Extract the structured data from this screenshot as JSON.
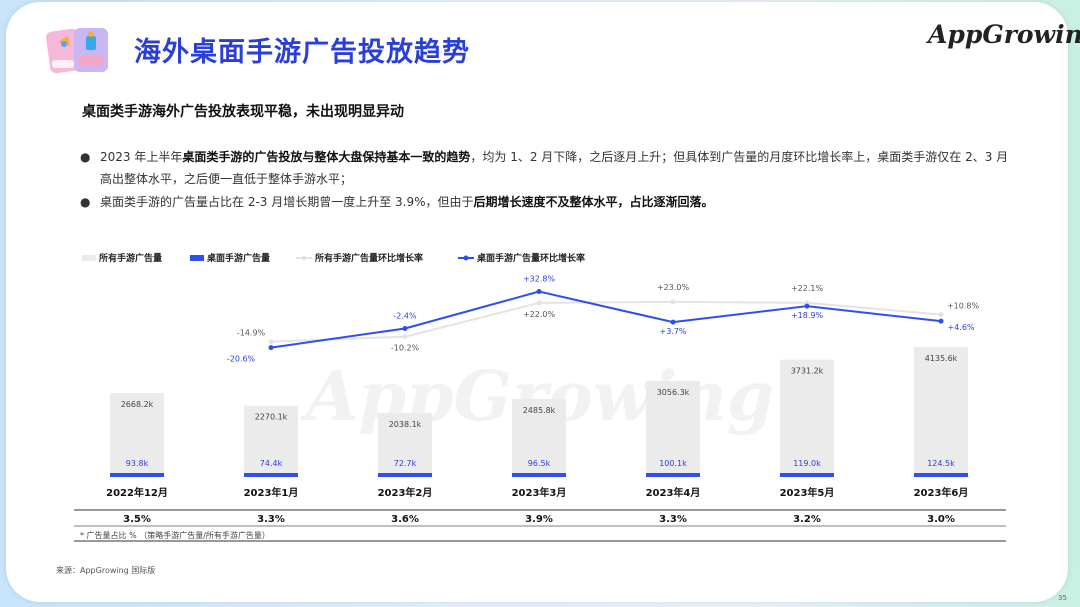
{
  "header": {
    "title": "海外桌面手游广告投放趋势",
    "brand": "AppGrowing"
  },
  "subtitle": "桌面类手游海外广告投放表现平稳，未出现明显异动",
  "bullets": [
    {
      "dot": "●",
      "parts": [
        {
          "t": "2023 年上半年",
          "b": false
        },
        {
          "t": "桌面类手游的广告投放与整体大盘保持基本一致的趋势",
          "b": true
        },
        {
          "t": "，均为 1、2 月下降，之后逐月上升；但具体到广告量的月度环比增长率上，桌面类手游仅在 2、3 月高出整体水平，之后便一直低于整体手游水平；",
          "b": false
        }
      ]
    },
    {
      "dot": "●",
      "parts": [
        {
          "t": "桌面类手游的广告量占比在 2-3 月增长期曾一度上升至 3.9%，但由于",
          "b": false
        },
        {
          "t": "后期增长速度不及整体水平，占比逐渐回落。",
          "b": true
        }
      ]
    }
  ],
  "chart_data": {
    "type": "bar",
    "categories": [
      "2022年12月",
      "2023年1月",
      "2023年2月",
      "2023年3月",
      "2023年4月",
      "2023年5月",
      "2023年6月"
    ],
    "legend": [
      "所有手游广告量",
      "桌面手游广告量",
      "所有手游广告量环比增长率",
      "桌面手游广告量环比增长率"
    ],
    "series": [
      {
        "name": "所有手游广告量",
        "kind": "bar",
        "color": "#ebebeb",
        "values": [
          2668.2,
          2270.1,
          2038.1,
          2485.8,
          3056.3,
          3731.2,
          4135.6
        ],
        "labels": [
          "2668.2k",
          "2270.1k",
          "2038.1k",
          "2485.8k",
          "3056.3k",
          "3731.2k",
          "4135.6k"
        ]
      },
      {
        "name": "桌面手游广告量",
        "kind": "bar",
        "color": "#2f4ef0",
        "values": [
          93.8,
          74.4,
          72.7,
          96.5,
          100.1,
          119.0,
          124.5
        ],
        "labels": [
          "93.8k",
          "74.4k",
          "72.7k",
          "96.5k",
          "100.1k",
          "119.0k",
          "124.5k"
        ]
      },
      {
        "name": "所有手游广告量环比增长率",
        "kind": "line",
        "color": "#e3e3e3",
        "values": [
          null,
          -14.9,
          -10.2,
          22.0,
          23.0,
          22.1,
          10.8
        ],
        "labels": [
          "",
          "-14.9%",
          "-10.2%",
          "+22.0%",
          "+23.0%",
          "+22.1%",
          "+10.8%"
        ]
      },
      {
        "name": "桌面手游广告量环比增长率",
        "kind": "line",
        "color": "#2f4ef0",
        "values": [
          null,
          -20.6,
          -2.4,
          32.8,
          3.7,
          18.9,
          4.6
        ],
        "labels": [
          "",
          "-20.6%",
          "-2.4%",
          "+32.8%",
          "+3.7%",
          "+18.9%",
          "+4.6%"
        ]
      }
    ],
    "share_row": [
      "3.5%",
      "3.3%",
      "3.6%",
      "3.9%",
      "3.3%",
      "3.2%",
      "3.0%"
    ],
    "footnote": "* 广告量占比 %  （策略手游广告量/所有手游广告量）",
    "watermark": "AppGrowing"
  },
  "source": "来源：AppGrowing 国际版",
  "page_number": "35"
}
